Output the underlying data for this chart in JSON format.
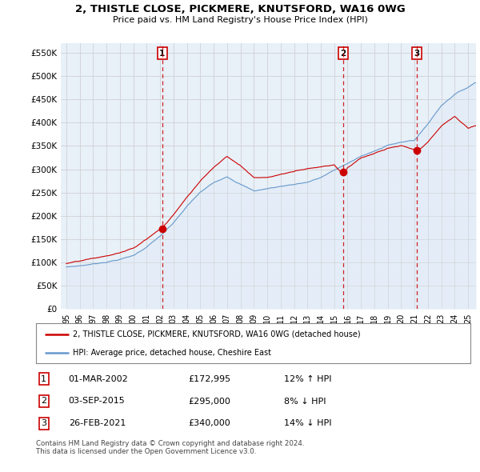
{
  "title": "2, THISTLE CLOSE, PICKMERE, KNUTSFORD, WA16 0WG",
  "subtitle": "Price paid vs. HM Land Registry's House Price Index (HPI)",
  "ylim": [
    0,
    570000
  ],
  "yticks": [
    0,
    50000,
    100000,
    150000,
    200000,
    250000,
    300000,
    350000,
    400000,
    450000,
    500000,
    550000
  ],
  "ytick_labels": [
    "£0",
    "£50K",
    "£100K",
    "£150K",
    "£200K",
    "£250K",
    "£300K",
    "£350K",
    "£400K",
    "£450K",
    "£500K",
    "£550K"
  ],
  "sale_color": "#cc0000",
  "hpi_color": "#6699cc",
  "hpi_fill_color": "#dce9f5",
  "vline_color": "#cc0000",
  "grid_color": "#cccccc",
  "plot_bg_color": "#e8f0f8",
  "sales": [
    {
      "date_idx": 7.17,
      "price": 172995,
      "label": "1"
    },
    {
      "date_idx": 20.67,
      "price": 295000,
      "label": "2"
    },
    {
      "date_idx": 26.15,
      "price": 340000,
      "label": "3"
    }
  ],
  "legend_sale_label": "2, THISTLE CLOSE, PICKMERE, KNUTSFORD, WA16 0WG (detached house)",
  "legend_hpi_label": "HPI: Average price, detached house, Cheshire East",
  "table_rows": [
    {
      "num": "1",
      "date": "01-MAR-2002",
      "price": "£172,995",
      "change": "12% ↑ HPI"
    },
    {
      "num": "2",
      "date": "03-SEP-2015",
      "price": "£295,000",
      "change": "8% ↓ HPI"
    },
    {
      "num": "3",
      "date": "26-FEB-2021",
      "price": "£340,000",
      "change": "14% ↓ HPI"
    }
  ],
  "footer": "Contains HM Land Registry data © Crown copyright and database right 2024.\nThis data is licensed under the Open Government Licence v3.0.",
  "start_year": 1995,
  "end_year": 2025,
  "hpi_keypoints": [
    [
      0,
      90000
    ],
    [
      1,
      93000
    ],
    [
      2,
      97000
    ],
    [
      3,
      102000
    ],
    [
      4,
      108000
    ],
    [
      5,
      116000
    ],
    [
      6,
      135000
    ],
    [
      7,
      158000
    ],
    [
      8,
      185000
    ],
    [
      9,
      220000
    ],
    [
      10,
      250000
    ],
    [
      11,
      270000
    ],
    [
      12,
      285000
    ],
    [
      13,
      270000
    ],
    [
      14,
      255000
    ],
    [
      15,
      260000
    ],
    [
      16,
      265000
    ],
    [
      17,
      270000
    ],
    [
      18,
      275000
    ],
    [
      19,
      285000
    ],
    [
      20,
      300000
    ],
    [
      21,
      315000
    ],
    [
      22,
      330000
    ],
    [
      23,
      340000
    ],
    [
      24,
      355000
    ],
    [
      25,
      360000
    ],
    [
      26,
      365000
    ],
    [
      27,
      400000
    ],
    [
      28,
      440000
    ],
    [
      29,
      465000
    ],
    [
      30,
      480000
    ],
    [
      30.5,
      490000
    ]
  ],
  "sale_keypoints": [
    [
      0,
      98000
    ],
    [
      1,
      102000
    ],
    [
      2,
      107000
    ],
    [
      3,
      112000
    ],
    [
      4,
      119000
    ],
    [
      5,
      128000
    ],
    [
      6,
      148000
    ],
    [
      7,
      170000
    ],
    [
      7.17,
      172995
    ],
    [
      8,
      200000
    ],
    [
      9,
      240000
    ],
    [
      10,
      275000
    ],
    [
      11,
      305000
    ],
    [
      12,
      330000
    ],
    [
      13,
      310000
    ],
    [
      14,
      285000
    ],
    [
      15,
      285000
    ],
    [
      16,
      292000
    ],
    [
      17,
      298000
    ],
    [
      18,
      305000
    ],
    [
      19,
      310000
    ],
    [
      20,
      315000
    ],
    [
      20.67,
      295000
    ],
    [
      21,
      310000
    ],
    [
      22,
      330000
    ],
    [
      23,
      340000
    ],
    [
      24,
      350000
    ],
    [
      25,
      355000
    ],
    [
      26,
      345000
    ],
    [
      26.15,
      340000
    ],
    [
      27,
      360000
    ],
    [
      28,
      395000
    ],
    [
      29,
      415000
    ],
    [
      30,
      390000
    ],
    [
      30.5,
      395000
    ]
  ]
}
